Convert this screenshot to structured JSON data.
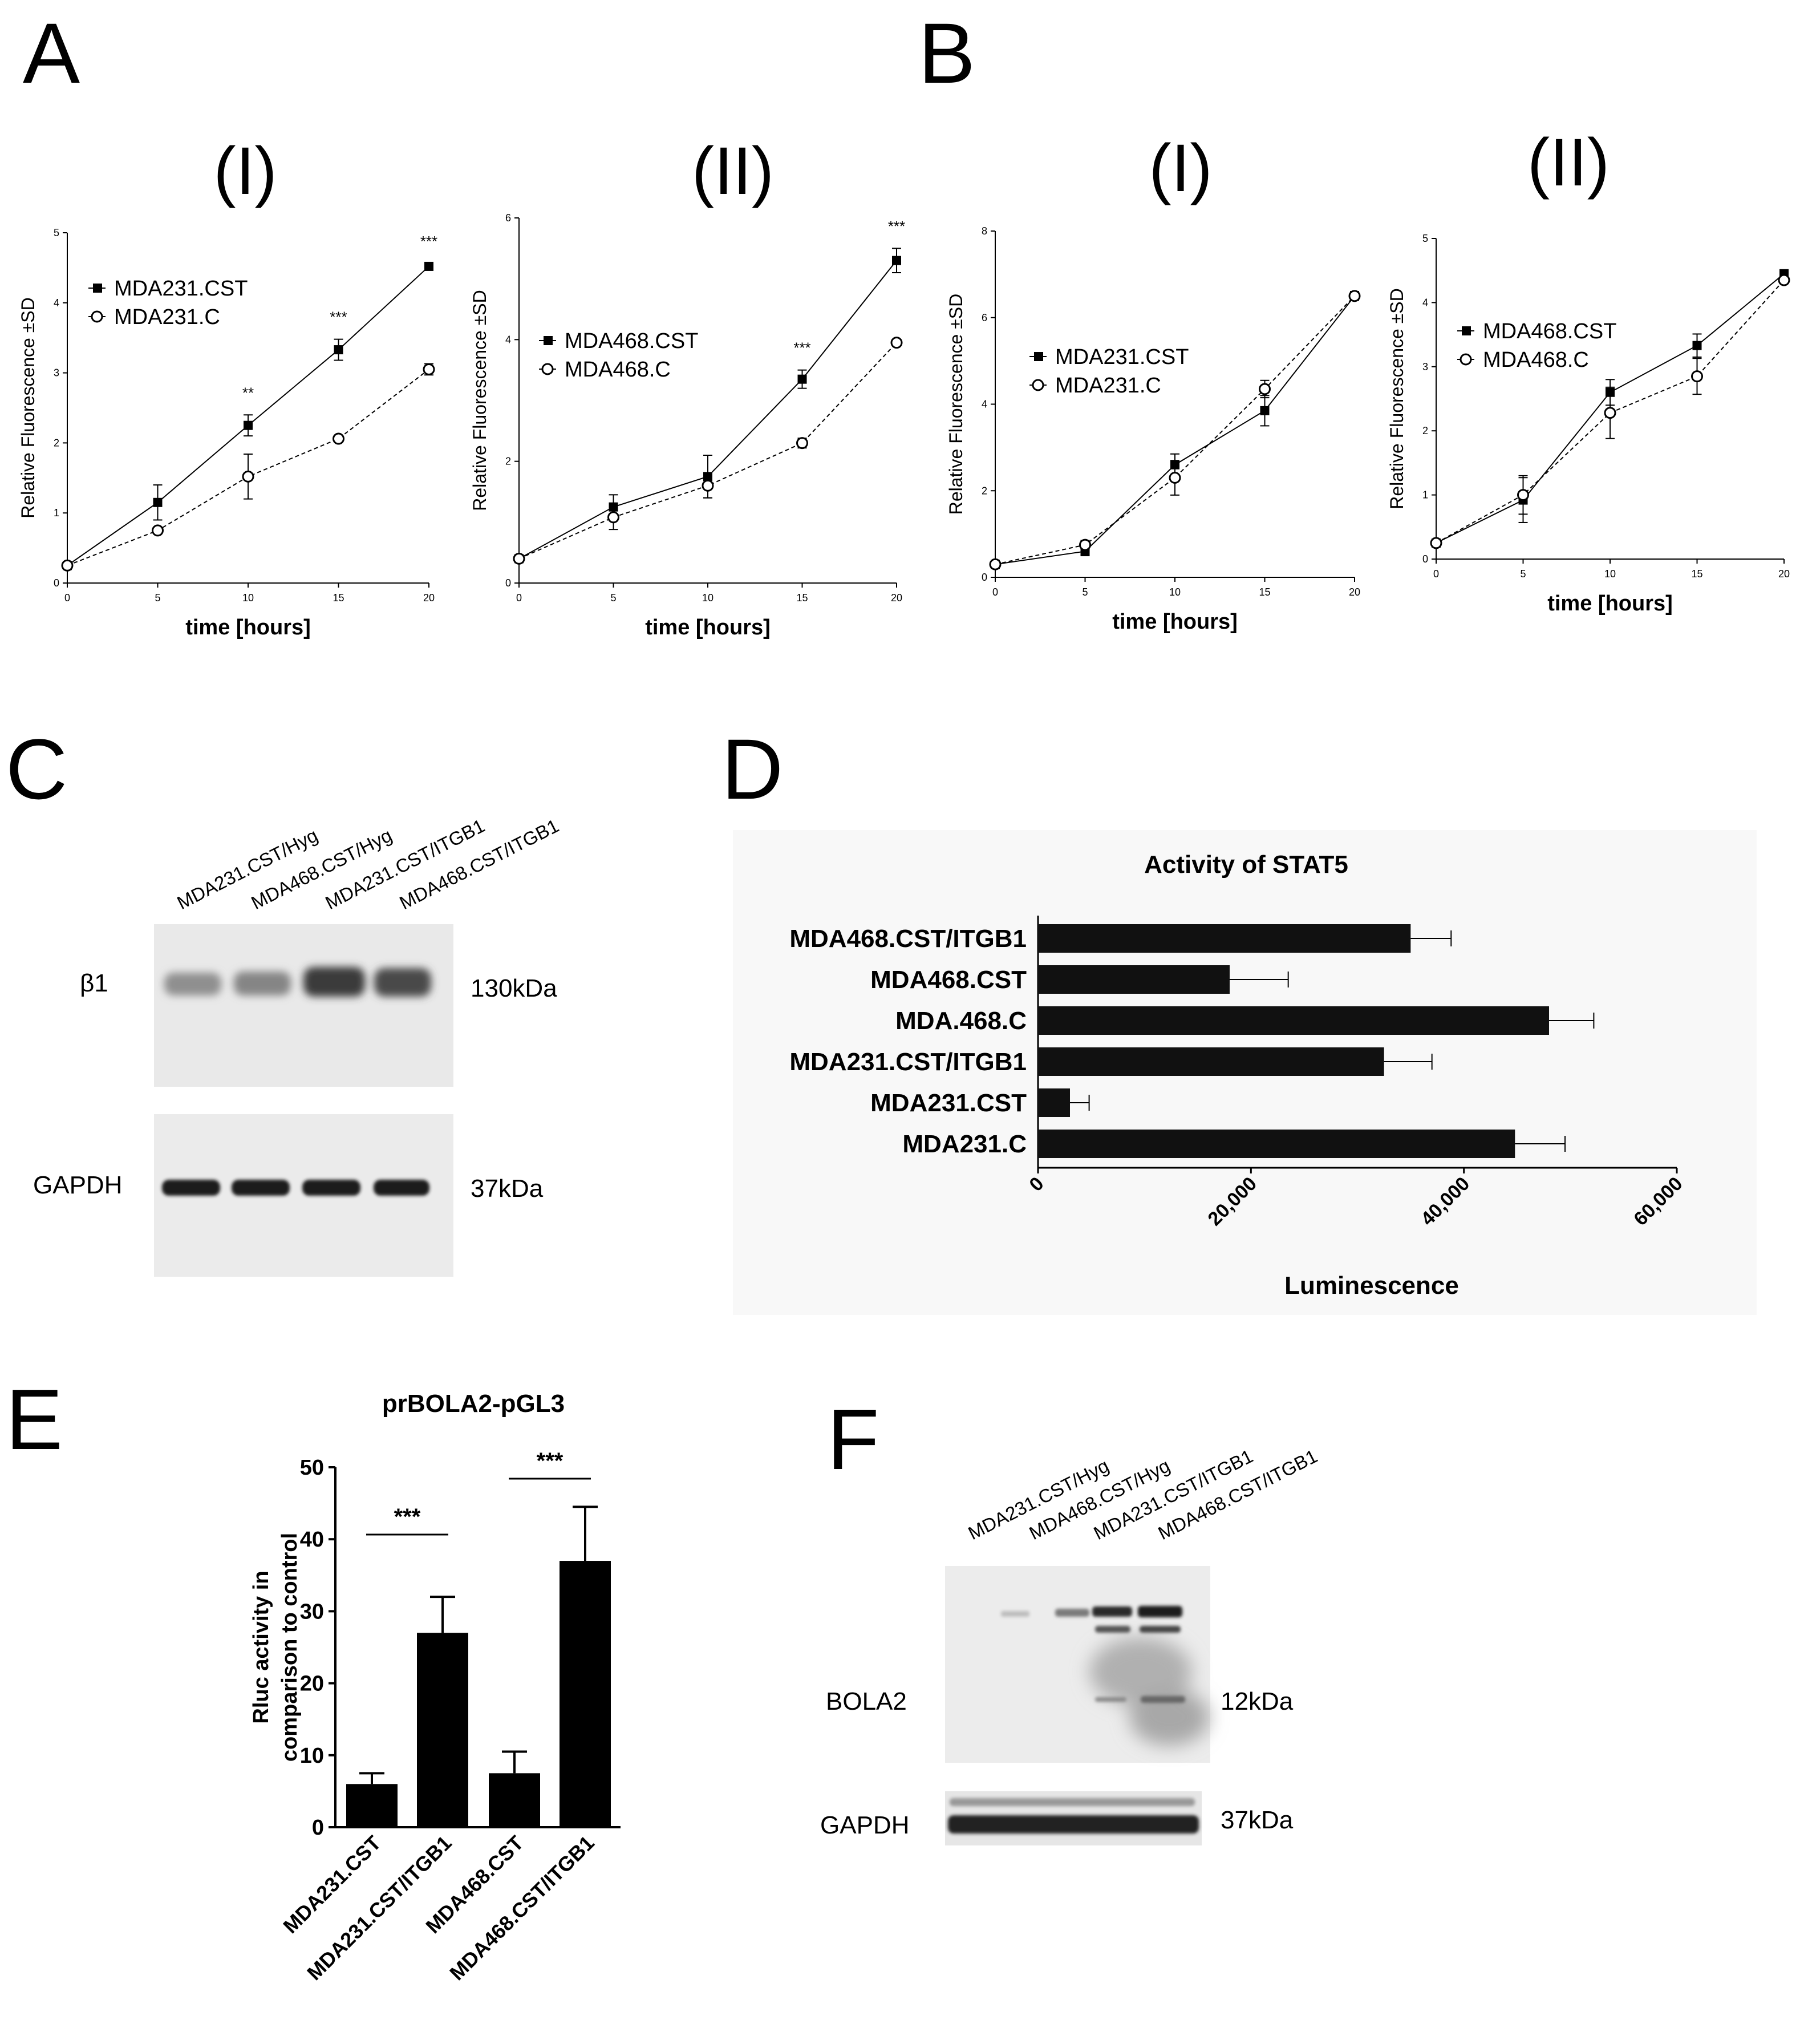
{
  "panels": {
    "A": {
      "label": "A"
    },
    "B": {
      "label": "B"
    },
    "C": {
      "label": "C"
    },
    "D": {
      "label": "D"
    },
    "E": {
      "label": "E"
    },
    "F": {
      "label": "F"
    }
  },
  "blot_c": {
    "lanes": [
      "MDA231.CST/Hyg",
      "MDA468.CST/Hyg",
      "MDA231.CST/ITGB1",
      "MDA468.CST/ITGB1"
    ],
    "bands": [
      {
        "name": "β1",
        "size": "130kDa"
      },
      {
        "name": "GAPDH",
        "size": "37kDa"
      }
    ]
  },
  "blot_f": {
    "lanes": [
      "MDA231.CST/Hyg",
      "MDA468.CST/Hyg",
      "MDA231.CST/ITGB1",
      "MDA468.CST/ITGB1"
    ],
    "bands": [
      {
        "name": "BOLA2",
        "size": "12kDa"
      },
      {
        "name": "GAPDH",
        "size": "37kDa"
      }
    ]
  },
  "chart_data": [
    {
      "id": "A-I",
      "type": "line",
      "subtitle": "(I)",
      "xlabel": "time [hours]",
      "ylabel": "Relative Fluorescence ±SD",
      "x": [
        0,
        5,
        10,
        15,
        20
      ],
      "xlim": [
        0,
        20
      ],
      "ylim": [
        0,
        5
      ],
      "xticks": [
        "0",
        "5",
        "10",
        "15",
        "20"
      ],
      "yticks": [
        "0",
        "1",
        "2",
        "3",
        "4",
        "5"
      ],
      "series": [
        {
          "name": "MDA231.CST",
          "marker": "square",
          "values": [
            0.25,
            1.15,
            2.25,
            3.33,
            4.52
          ],
          "errors": [
            0.03,
            0.25,
            0.15,
            0.15,
            0.04
          ]
        },
        {
          "name": "MDA231.C",
          "marker": "circle",
          "values": [
            0.25,
            0.75,
            1.52,
            2.06,
            3.05
          ],
          "errors": [
            0.03,
            0.04,
            0.32,
            0.04,
            0.08
          ]
        }
      ],
      "annotations": [
        {
          "x": 10,
          "text": "**"
        },
        {
          "x": 15,
          "text": "***"
        },
        {
          "x": 20,
          "text": "***"
        }
      ]
    },
    {
      "id": "A-II",
      "type": "line",
      "subtitle": "(II)",
      "xlabel": "time [hours]",
      "ylabel": "Relative Fluorescence ±SD",
      "x": [
        0,
        5,
        10,
        15,
        20
      ],
      "xlim": [
        0,
        20
      ],
      "ylim": [
        0,
        6
      ],
      "xticks": [
        "0",
        "5",
        "10",
        "15",
        "20"
      ],
      "yticks": [
        "0",
        "2",
        "4",
        "6"
      ],
      "series": [
        {
          "name": "MDA468.CST",
          "marker": "square",
          "values": [
            0.4,
            1.25,
            1.75,
            3.35,
            5.3
          ],
          "errors": [
            0.05,
            0.2,
            0.35,
            0.15,
            0.2
          ]
        },
        {
          "name": "MDA468.C",
          "marker": "circle",
          "values": [
            0.4,
            1.08,
            1.6,
            2.3,
            3.95
          ],
          "errors": [
            0.05,
            0.2,
            0.2,
            0.08,
            0.05
          ]
        }
      ],
      "annotations": [
        {
          "x": 15,
          "text": "***"
        },
        {
          "x": 20,
          "text": "***"
        }
      ]
    },
    {
      "id": "B-I",
      "type": "line",
      "subtitle": "(I)",
      "xlabel": "time [hours]",
      "ylabel": "Relative Fluorescence ±SD",
      "x": [
        0,
        5,
        10,
        15,
        20
      ],
      "xlim": [
        0,
        20
      ],
      "ylim": [
        0,
        8
      ],
      "xticks": [
        "0",
        "5",
        "10",
        "15",
        "20"
      ],
      "yticks": [
        "0",
        "2",
        "4",
        "6",
        "8"
      ],
      "series": [
        {
          "name": "MDA231.CST",
          "marker": "square",
          "values": [
            0.3,
            0.6,
            2.6,
            3.85,
            6.5
          ],
          "errors": [
            0.05,
            0.1,
            0.25,
            0.35,
            0.1
          ]
        },
        {
          "name": "MDA231.C",
          "marker": "circle",
          "values": [
            0.3,
            0.75,
            2.3,
            4.35,
            6.5
          ],
          "errors": [
            0.05,
            0.1,
            0.4,
            0.2,
            0.1
          ]
        }
      ]
    },
    {
      "id": "B-II",
      "type": "line",
      "subtitle": "(II)",
      "xlabel": "time [hours]",
      "ylabel": "Relative Fluorescence ±SD",
      "x": [
        0,
        5,
        10,
        15,
        20
      ],
      "xlim": [
        0,
        20
      ],
      "ylim": [
        0,
        5
      ],
      "xticks": [
        "0",
        "5",
        "10",
        "15",
        "20"
      ],
      "yticks": [
        "0",
        "1",
        "2",
        "3",
        "4",
        "5"
      ],
      "series": [
        {
          "name": "MDA468.CST",
          "marker": "square",
          "values": [
            0.25,
            0.92,
            2.6,
            3.33,
            4.45
          ],
          "errors": [
            0.05,
            0.35,
            0.2,
            0.18,
            0.05
          ]
        },
        {
          "name": "MDA468.C",
          "marker": "circle",
          "values": [
            0.25,
            1.0,
            2.28,
            2.85,
            4.35
          ],
          "errors": [
            0.05,
            0.3,
            0.4,
            0.28,
            0.05
          ]
        }
      ]
    },
    {
      "id": "D",
      "type": "bar",
      "orientation": "horizontal",
      "title": "Activity of STAT5",
      "xlabel": "Luminescence",
      "categories": [
        "MDA468.CST/ITGB1",
        "MDA468.CST",
        "MDA.468.C",
        "MDA231.CST/ITGB1",
        "MDA231.CST",
        "MDA231.C"
      ],
      "values": [
        35000,
        18000,
        48000,
        32500,
        3000,
        44800
      ],
      "errors": [
        3800,
        5500,
        4200,
        4500,
        1800,
        4700
      ],
      "xlim": [
        0,
        60000
      ],
      "xticks": [
        "0",
        "20,000",
        "40,000",
        "60,000"
      ]
    },
    {
      "id": "E",
      "type": "bar",
      "title": "prBOLA2-pGL3",
      "ylabel": "Rluc activity in comparison to control",
      "categories": [
        "MDA231.CST",
        "MDA231.CST/ITGB1",
        "MDA468.CST",
        "MDA468.CST/ITGB1"
      ],
      "values": [
        6,
        27,
        7.5,
        37
      ],
      "errors": [
        1.5,
        5,
        3,
        7.5
      ],
      "ylim": [
        0,
        50
      ],
      "yticks": [
        "0",
        "10",
        "20",
        "30",
        "40",
        "50"
      ],
      "annotations": [
        {
          "between": [
            0,
            1
          ],
          "text": "***"
        },
        {
          "between": [
            2,
            3
          ],
          "text": "***"
        }
      ]
    }
  ]
}
